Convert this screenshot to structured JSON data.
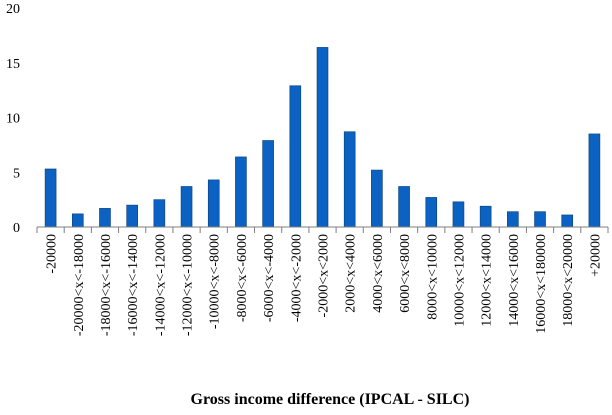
{
  "chart_data": {
    "type": "bar",
    "title": "",
    "xlabel": "Gross income difference (IPCAL - SILC)",
    "ylabel": "",
    "ylim": [
      0,
      20
    ],
    "yticks": [
      0,
      5,
      10,
      15,
      20
    ],
    "grid": false,
    "legend": "none",
    "bar_color": "#0B62C2",
    "categories": [
      "-20000",
      "-20000<x<-18000",
      "-18000<x<-16000",
      "-16000<x<-14000",
      "-14000<x<-12000",
      "-12000<x<-10000",
      "-10000<x<-8000",
      "-8000<x<-6000",
      "-6000<x<-4000",
      "-4000<x<-2000",
      "-2000<x<2000",
      "2000<x<4000",
      "4000<x<6000",
      "6000<x<8000",
      "8000<x<10000",
      "10000<x<12000",
      "12000<x<14000",
      "14000<x<16000",
      "16000<x<180000",
      "18000<x<20000",
      "+20000"
    ],
    "values": [
      5.3,
      1.2,
      1.7,
      2.0,
      2.5,
      3.7,
      4.3,
      6.4,
      7.9,
      12.9,
      16.4,
      8.7,
      5.2,
      3.7,
      2.7,
      2.3,
      1.9,
      1.4,
      1.4,
      1.1,
      8.5
    ]
  }
}
